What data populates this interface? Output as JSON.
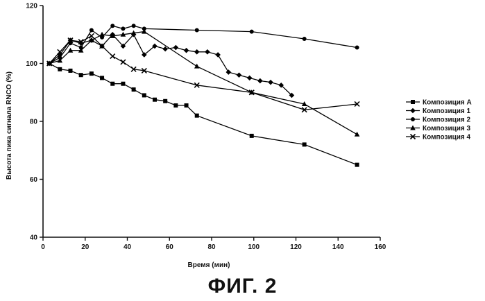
{
  "figure_caption": "ФИГ. 2",
  "chart_data": {
    "type": "line",
    "xlabel": "Время (мин)",
    "ylabel": "Высота пика сигнала RNCO (%)",
    "xlim": [
      0,
      160
    ],
    "ylim": [
      40,
      120
    ],
    "xticks": [
      0,
      20,
      40,
      60,
      80,
      100,
      120,
      140,
      160
    ],
    "yticks": [
      40,
      60,
      80,
      100,
      120
    ],
    "grid": false,
    "legend_position": "right",
    "series": [
      {
        "name": "Композиция A",
        "marker": "square",
        "color": "#000000",
        "x": [
          3,
          8,
          13,
          18,
          23,
          28,
          33,
          38,
          43,
          48,
          53,
          58,
          63,
          68,
          73,
          99,
          124,
          149
        ],
        "y": [
          100,
          98,
          97.5,
          96,
          96.5,
          95,
          93,
          93,
          91,
          89,
          87.5,
          87,
          85.5,
          85.5,
          82,
          75,
          72,
          65
        ]
      },
      {
        "name": "Композиция 1",
        "marker": "diamond",
        "color": "#000000",
        "x": [
          3,
          8,
          13,
          18,
          23,
          28,
          33,
          38,
          43,
          48,
          53,
          58,
          63,
          68,
          73,
          78,
          83,
          88,
          93,
          98,
          103,
          108,
          113,
          118
        ],
        "y": [
          100,
          103,
          108,
          107,
          108,
          106,
          110,
          106,
          110,
          103,
          106,
          105,
          105.5,
          104.5,
          104,
          104,
          103,
          97,
          96,
          95,
          94,
          93.5,
          92.5,
          89
        ]
      },
      {
        "name": "Композиция 2",
        "marker": "circle",
        "color": "#000000",
        "x": [
          3,
          8,
          13,
          18,
          23,
          28,
          33,
          38,
          43,
          48,
          73,
          99,
          124,
          149
        ],
        "y": [
          100,
          102,
          107,
          105.5,
          111.5,
          109,
          113,
          112,
          113,
          112,
          111.5,
          111,
          108.5,
          105.5
        ]
      },
      {
        "name": "Композиция 3",
        "marker": "triangle",
        "color": "#000000",
        "x": [
          3,
          8,
          13,
          18,
          23,
          28,
          33,
          38,
          43,
          48,
          73,
          99,
          124,
          149
        ],
        "y": [
          100,
          101,
          104.5,
          104.5,
          108,
          110,
          109.5,
          110,
          110.5,
          111,
          99,
          90,
          86,
          75.5
        ]
      },
      {
        "name": "Композиция 4",
        "marker": "x",
        "color": "#000000",
        "x": [
          3,
          8,
          13,
          18,
          23,
          28,
          33,
          38,
          43,
          48,
          73,
          99,
          124,
          149
        ],
        "y": [
          100,
          104,
          108,
          107.5,
          109.5,
          106,
          102.5,
          100.5,
          98,
          97.5,
          92.5,
          90,
          84,
          86
        ]
      }
    ]
  }
}
